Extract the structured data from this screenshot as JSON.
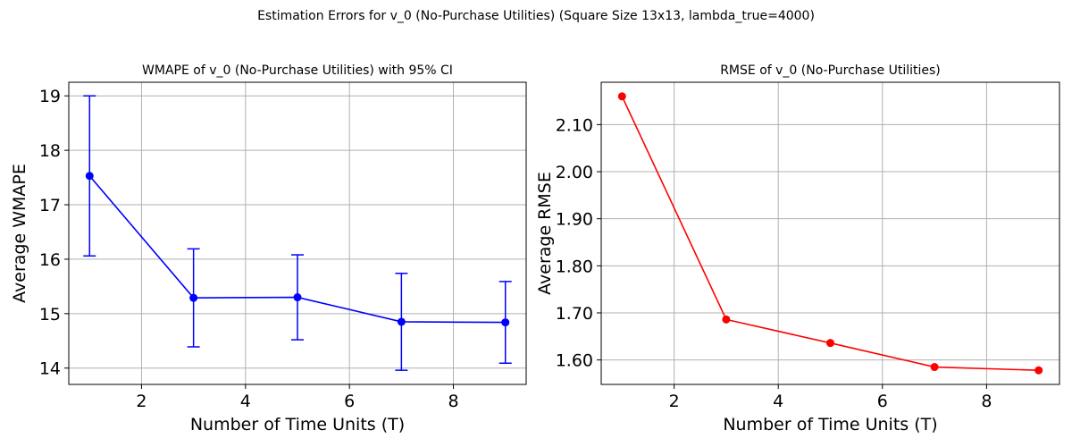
{
  "figure": {
    "suptitle": "Estimation Errors for v_0 (No-Purchase Utilities) (Square Size 13x13, lambda_true=4000)"
  },
  "chart_data": [
    {
      "type": "line",
      "title": "WMAPE of v_0 (No-Purchase Utilities) with 95% CI",
      "xlabel": "Number of Time Units (T)",
      "ylabel": "Average WMAPE",
      "xlim": [
        0.6,
        9.4
      ],
      "ylim": [
        13.7,
        19.25
      ],
      "xticks": [
        2,
        4,
        6,
        8
      ],
      "yticks": [
        14,
        15,
        16,
        17,
        18,
        19
      ],
      "grid": true,
      "color": "#0000ff",
      "marker": "circle",
      "error_bars": "95% CI",
      "series": [
        {
          "x": [
            1,
            3,
            5,
            7,
            9
          ],
          "y": [
            17.53,
            15.29,
            15.3,
            14.85,
            14.84
          ],
          "ci_low": [
            16.06,
            14.39,
            14.52,
            13.96,
            14.09
          ],
          "ci_high": [
            19.0,
            16.19,
            16.08,
            15.74,
            15.59
          ]
        }
      ]
    },
    {
      "type": "line",
      "title": "RMSE of v_0 (No-Purchase Utilities)",
      "xlabel": "Number of Time Units (T)",
      "ylabel": "Average RMSE",
      "xlim": [
        0.6,
        9.4
      ],
      "ylim": [
        1.548,
        2.19
      ],
      "xticks": [
        2,
        4,
        6,
        8
      ],
      "yticks": [
        1.6,
        1.7,
        1.8,
        1.9,
        2.0,
        2.1
      ],
      "grid": true,
      "color": "#ff0000",
      "marker": "circle",
      "series": [
        {
          "x": [
            1,
            3,
            5,
            7,
            9
          ],
          "y": [
            2.16,
            1.686,
            1.636,
            1.585,
            1.578
          ]
        }
      ]
    }
  ]
}
